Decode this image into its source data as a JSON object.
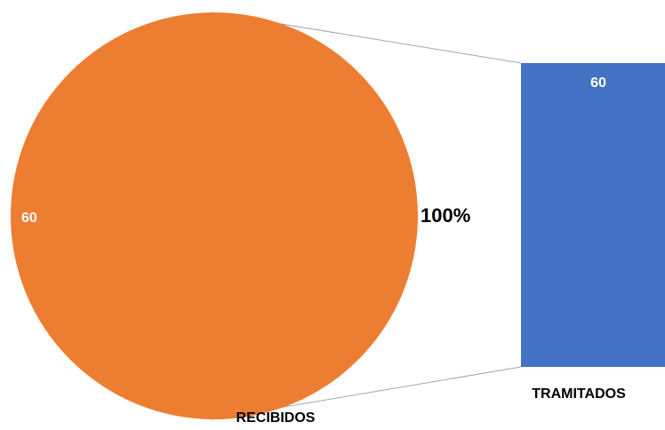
{
  "chart_data": {
    "type": "pie",
    "variant": "pie-of-bar",
    "pie": {
      "slices": [
        {
          "label": "RECIBIDOS",
          "value": 60,
          "color": "#ED7D31"
        }
      ],
      "data_label": "60",
      "percent_label": "100%"
    },
    "bar": {
      "segments": [
        {
          "label": "TRAMITADOS",
          "value": 60,
          "color": "#4472C4"
        }
      ],
      "data_label": "60"
    },
    "connector_color": "#A6A6A6",
    "title": "",
    "legend": "none"
  }
}
